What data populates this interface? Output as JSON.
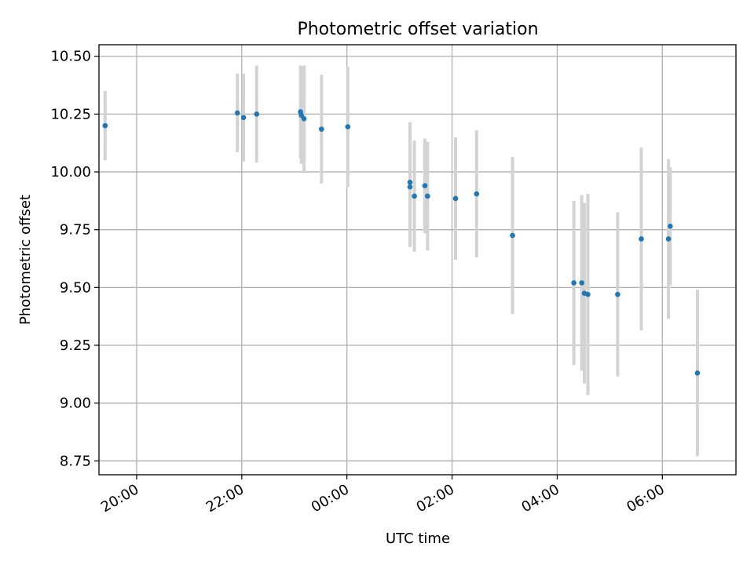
{
  "chart_data": {
    "type": "scatter",
    "title": "Photometric offset variation",
    "xlabel": "UTC time",
    "ylabel": "Photometric offset",
    "x_is_time": true,
    "xlim": [
      "19:17",
      "07:24"
    ],
    "ylim": [
      8.69,
      10.55
    ],
    "xticks": [
      "20:00",
      "22:00",
      "00:00",
      "02:00",
      "04:00",
      "06:00"
    ],
    "yticks": [
      8.75,
      9.0,
      9.25,
      9.5,
      9.75,
      10.0,
      10.25,
      10.5
    ],
    "ytick_labels": [
      "8.75",
      "9.00",
      "9.25",
      "9.50",
      "9.75",
      "10.00",
      "10.25",
      "10.50"
    ],
    "grid": true,
    "colors": {
      "point": "#1f77b4",
      "errorbar": "#d3d3d3",
      "grid": "#b0b0b0"
    },
    "points": [
      {
        "x": "19:24",
        "y": 10.2,
        "err": 0.15
      },
      {
        "x": "21:55",
        "y": 10.255,
        "err": 0.17
      },
      {
        "x": "22:02",
        "y": 10.235,
        "err": 0.19
      },
      {
        "x": "22:17",
        "y": 10.25,
        "err": 0.21
      },
      {
        "x": "23:07",
        "y": 10.26,
        "err": 0.2
      },
      {
        "x": "23:08",
        "y": 10.245,
        "err": 0.21
      },
      {
        "x": "23:11",
        "y": 10.23,
        "err": 0.23
      },
      {
        "x": "23:31",
        "y": 10.185,
        "err": 0.235
      },
      {
        "x": "00:01",
        "y": 10.195,
        "err": 0.26
      },
      {
        "x": "01:12",
        "y": 9.955,
        "err": 0.26
      },
      {
        "x": "01:12",
        "y": 9.935,
        "err": 0.26
      },
      {
        "x": "01:17",
        "y": 9.895,
        "err": 0.24
      },
      {
        "x": "01:29",
        "y": 9.94,
        "err": 0.205
      },
      {
        "x": "01:32",
        "y": 9.895,
        "err": 0.235
      },
      {
        "x": "02:04",
        "y": 9.885,
        "err": 0.265
      },
      {
        "x": "02:28",
        "y": 9.905,
        "err": 0.275
      },
      {
        "x": "03:09",
        "y": 9.725,
        "err": 0.34
      },
      {
        "x": "04:19",
        "y": 9.52,
        "err": 0.355
      },
      {
        "x": "04:28",
        "y": 9.52,
        "err": 0.38
      },
      {
        "x": "04:31",
        "y": 9.475,
        "err": 0.39
      },
      {
        "x": "04:35",
        "y": 9.47,
        "err": 0.435
      },
      {
        "x": "05:09",
        "y": 9.47,
        "err": 0.355
      },
      {
        "x": "05:36",
        "y": 9.71,
        "err": 0.395
      },
      {
        "x": "06:07",
        "y": 9.71,
        "err": 0.345
      },
      {
        "x": "06:09",
        "y": 9.765,
        "err": 0.255
      },
      {
        "x": "06:40",
        "y": 9.13,
        "err": 0.36
      }
    ]
  }
}
